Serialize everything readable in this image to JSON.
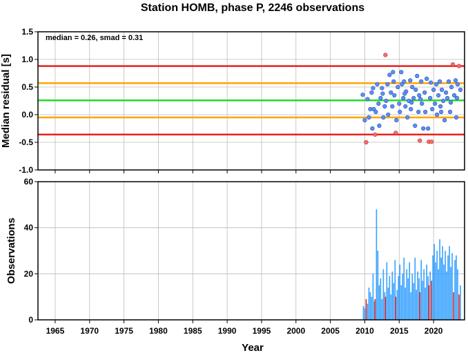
{
  "chart_data": {
    "title": "Station HOMB, phase P, 2246 observations",
    "xlabel": "Year",
    "x_ticks": [
      "1965",
      "1970",
      "1975",
      "1980",
      "1985",
      "1990",
      "1995",
      "2000",
      "2005",
      "2010",
      "2015",
      "2020"
    ],
    "xlim": [
      1962.5,
      2024.5
    ],
    "panels": [
      {
        "type": "scatter",
        "ylabel": "Median residual [s]",
        "ylim": [
          -1.0,
          1.5
        ],
        "y_ticks": [
          "1.5",
          "1.0",
          "0.5",
          "0.0",
          "-0.5",
          "-1.0"
        ],
        "annotation": "median = 0.26, smad = 0.31",
        "grid": true,
        "reference_lines": [
          {
            "y": 0.88,
            "color": "#e8201a"
          },
          {
            "y": 0.57,
            "color": "#ffa500"
          },
          {
            "y": 0.26,
            "color": "#22dd22"
          },
          {
            "y": -0.05,
            "color": "#ffa500"
          },
          {
            "y": -0.36,
            "color": "#e8201a"
          }
        ],
        "inlier_color": "#5b8ff9",
        "outlier_color": "#ff6b6b",
        "points": [
          {
            "x": 2009.7,
            "y": 0.36
          },
          {
            "x": 2010.0,
            "y": -0.1
          },
          {
            "x": 2010.2,
            "y": -0.5,
            "outlier": true
          },
          {
            "x": 2010.4,
            "y": 0.28
          },
          {
            "x": 2010.6,
            "y": -0.05
          },
          {
            "x": 2010.8,
            "y": 0.1
          },
          {
            "x": 2011.0,
            "y": 0.4
          },
          {
            "x": 2011.1,
            "y": -0.25
          },
          {
            "x": 2011.3,
            "y": 0.1
          },
          {
            "x": 2011.5,
            "y": -0.36,
            "outlier": true
          },
          {
            "x": 2011.6,
            "y": 0.05
          },
          {
            "x": 2011.8,
            "y": 0.55
          },
          {
            "x": 2012.0,
            "y": 0.2
          },
          {
            "x": 2012.1,
            "y": -0.2
          },
          {
            "x": 2012.3,
            "y": 0.3
          },
          {
            "x": 2012.5,
            "y": 0.48
          },
          {
            "x": 2012.7,
            "y": -0.05
          },
          {
            "x": 2012.9,
            "y": 0.15
          },
          {
            "x": 2013.0,
            "y": 1.08,
            "outlier": true
          },
          {
            "x": 2013.1,
            "y": 0.25
          },
          {
            "x": 2013.3,
            "y": 0.55
          },
          {
            "x": 2013.4,
            "y": 0.0
          },
          {
            "x": 2013.6,
            "y": 0.72
          },
          {
            "x": 2013.8,
            "y": 0.4
          },
          {
            "x": 2014.0,
            "y": 0.15
          },
          {
            "x": 2014.1,
            "y": 0.77
          },
          {
            "x": 2014.3,
            "y": 0.35
          },
          {
            "x": 2014.5,
            "y": -0.33,
            "outlier": true
          },
          {
            "x": 2014.6,
            "y": -0.1
          },
          {
            "x": 2014.8,
            "y": 0.5
          },
          {
            "x": 2015.0,
            "y": 0.2
          },
          {
            "x": 2015.1,
            "y": 0.05
          },
          {
            "x": 2015.3,
            "y": 0.77
          },
          {
            "x": 2015.4,
            "y": 0.55
          },
          {
            "x": 2015.6,
            "y": 0.3
          },
          {
            "x": 2015.7,
            "y": 0.6
          },
          {
            "x": 2015.9,
            "y": 0.15
          },
          {
            "x": 2016.0,
            "y": 0.42
          },
          {
            "x": 2016.2,
            "y": -0.05
          },
          {
            "x": 2016.4,
            "y": 0.25
          },
          {
            "x": 2016.6,
            "y": 0.62
          },
          {
            "x": 2016.7,
            "y": 0.1
          },
          {
            "x": 2016.9,
            "y": 0.5
          },
          {
            "x": 2017.1,
            "y": 0.3
          },
          {
            "x": 2017.3,
            "y": -0.2
          },
          {
            "x": 2017.4,
            "y": 0.45
          },
          {
            "x": 2017.6,
            "y": 0.7
          },
          {
            "x": 2017.8,
            "y": 0.05
          },
          {
            "x": 2017.9,
            "y": 0.35
          },
          {
            "x": 2018.0,
            "y": -0.47,
            "outlier": true
          },
          {
            "x": 2018.2,
            "y": 0.6
          },
          {
            "x": 2018.3,
            "y": 0.2
          },
          {
            "x": 2018.5,
            "y": -0.25
          },
          {
            "x": 2018.7,
            "y": 0.4
          },
          {
            "x": 2018.8,
            "y": 0.05
          },
          {
            "x": 2019.0,
            "y": 0.65
          },
          {
            "x": 2019.2,
            "y": -0.25
          },
          {
            "x": 2019.3,
            "y": -0.49,
            "outlier": true
          },
          {
            "x": 2019.5,
            "y": 0.3
          },
          {
            "x": 2019.7,
            "y": -0.49,
            "outlier": true
          },
          {
            "x": 2019.8,
            "y": 0.1
          },
          {
            "x": 2020.0,
            "y": 0.45
          },
          {
            "x": 2020.2,
            "y": 0.2
          },
          {
            "x": 2020.4,
            "y": 0.55
          },
          {
            "x": 2020.5,
            "y": 0.0
          },
          {
            "x": 2020.7,
            "y": 0.35
          },
          {
            "x": 2020.9,
            "y": 0.6
          },
          {
            "x": 2021.0,
            "y": 0.15
          },
          {
            "x": 2021.2,
            "y": 0.45
          },
          {
            "x": 2021.4,
            "y": 0.25
          },
          {
            "x": 2021.6,
            "y": -0.1
          },
          {
            "x": 2021.8,
            "y": 0.4
          },
          {
            "x": 2022.0,
            "y": 0.3
          },
          {
            "x": 2022.2,
            "y": 0.6
          },
          {
            "x": 2022.4,
            "y": 0.05
          },
          {
            "x": 2022.6,
            "y": 0.5
          },
          {
            "x": 2022.8,
            "y": 0.91,
            "outlier": true
          },
          {
            "x": 2023.0,
            "y": 0.35
          },
          {
            "x": 2023.2,
            "y": 0.62
          },
          {
            "x": 2023.3,
            "y": -0.05
          },
          {
            "x": 2023.5,
            "y": 0.55
          },
          {
            "x": 2023.7,
            "y": 0.88,
            "outlier": true
          },
          {
            "x": 2023.9,
            "y": 0.45
          },
          {
            "x": 2011.2,
            "y": 0.48
          },
          {
            "x": 2012.6,
            "y": 0.38
          },
          {
            "x": 2014.2,
            "y": 0.6
          },
          {
            "x": 2015.8,
            "y": 0.38
          },
          {
            "x": 2016.8,
            "y": 0.22
          },
          {
            "x": 2018.1,
            "y": 0.28
          },
          {
            "x": 2019.6,
            "y": 0.58
          },
          {
            "x": 2021.1,
            "y": 0.05
          },
          {
            "x": 2022.5,
            "y": 0.22
          },
          {
            "x": 2023.4,
            "y": 0.3
          }
        ]
      },
      {
        "type": "bar",
        "ylabel": "Observations",
        "ylim": [
          0,
          60
        ],
        "y_ticks": [
          "60",
          "40",
          "20",
          "0"
        ],
        "grid": true,
        "bar_color": "#33a0ff",
        "outlier_bar_color": "#e8201a",
        "bars": [
          {
            "x": 2009.8,
            "y": 6
          },
          {
            "x": 2010.0,
            "y": 5
          },
          {
            "x": 2010.2,
            "y": 9,
            "outlier": true
          },
          {
            "x": 2010.4,
            "y": 7
          },
          {
            "x": 2010.6,
            "y": 14
          },
          {
            "x": 2010.8,
            "y": 12
          },
          {
            "x": 2011.0,
            "y": 10
          },
          {
            "x": 2011.2,
            "y": 20
          },
          {
            "x": 2011.4,
            "y": 8
          },
          {
            "x": 2011.5,
            "y": 9,
            "outlier": true
          },
          {
            "x": 2011.7,
            "y": 48
          },
          {
            "x": 2011.9,
            "y": 30
          },
          {
            "x": 2012.1,
            "y": 15
          },
          {
            "x": 2012.3,
            "y": 18
          },
          {
            "x": 2012.5,
            "y": 9
          },
          {
            "x": 2012.7,
            "y": 22
          },
          {
            "x": 2012.9,
            "y": 12
          },
          {
            "x": 2013.0,
            "y": 10,
            "outlier": true
          },
          {
            "x": 2013.2,
            "y": 25
          },
          {
            "x": 2013.4,
            "y": 14
          },
          {
            "x": 2013.6,
            "y": 19
          },
          {
            "x": 2013.8,
            "y": 11
          },
          {
            "x": 2014.0,
            "y": 21
          },
          {
            "x": 2014.2,
            "y": 16
          },
          {
            "x": 2014.4,
            "y": 26
          },
          {
            "x": 2014.5,
            "y": 10,
            "outlier": true
          },
          {
            "x": 2014.7,
            "y": 13
          },
          {
            "x": 2014.9,
            "y": 19
          },
          {
            "x": 2015.1,
            "y": 24
          },
          {
            "x": 2015.3,
            "y": 15
          },
          {
            "x": 2015.5,
            "y": 20
          },
          {
            "x": 2015.7,
            "y": 27
          },
          {
            "x": 2015.9,
            "y": 14
          },
          {
            "x": 2016.1,
            "y": 22
          },
          {
            "x": 2016.3,
            "y": 18
          },
          {
            "x": 2016.5,
            "y": 25
          },
          {
            "x": 2016.7,
            "y": 12
          },
          {
            "x": 2016.9,
            "y": 20
          },
          {
            "x": 2017.1,
            "y": 16
          },
          {
            "x": 2017.3,
            "y": 27
          },
          {
            "x": 2017.5,
            "y": 13
          },
          {
            "x": 2017.7,
            "y": 21
          },
          {
            "x": 2017.9,
            "y": 18
          },
          {
            "x": 2018.0,
            "y": 12,
            "outlier": true
          },
          {
            "x": 2018.2,
            "y": 26
          },
          {
            "x": 2018.4,
            "y": 17
          },
          {
            "x": 2018.6,
            "y": 22
          },
          {
            "x": 2018.8,
            "y": 14
          },
          {
            "x": 2019.0,
            "y": 24
          },
          {
            "x": 2019.2,
            "y": 19
          },
          {
            "x": 2019.3,
            "y": 15,
            "outlier": true
          },
          {
            "x": 2019.5,
            "y": 21
          },
          {
            "x": 2019.7,
            "y": 17,
            "outlier": true
          },
          {
            "x": 2019.9,
            "y": 28
          },
          {
            "x": 2020.1,
            "y": 33
          },
          {
            "x": 2020.3,
            "y": 25
          },
          {
            "x": 2020.5,
            "y": 30
          },
          {
            "x": 2020.7,
            "y": 22
          },
          {
            "x": 2020.9,
            "y": 35
          },
          {
            "x": 2021.1,
            "y": 27
          },
          {
            "x": 2021.3,
            "y": 32
          },
          {
            "x": 2021.5,
            "y": 24
          },
          {
            "x": 2021.7,
            "y": 30
          },
          {
            "x": 2021.9,
            "y": 21
          },
          {
            "x": 2022.1,
            "y": 28
          },
          {
            "x": 2022.3,
            "y": 32
          },
          {
            "x": 2022.5,
            "y": 23
          },
          {
            "x": 2022.7,
            "y": 29
          },
          {
            "x": 2022.9,
            "y": 12,
            "outlier": true
          },
          {
            "x": 2023.1,
            "y": 26
          },
          {
            "x": 2023.3,
            "y": 28
          },
          {
            "x": 2023.5,
            "y": 22
          },
          {
            "x": 2023.7,
            "y": 11,
            "outlier": true
          },
          {
            "x": 2023.9,
            "y": 15
          }
        ]
      }
    ]
  }
}
